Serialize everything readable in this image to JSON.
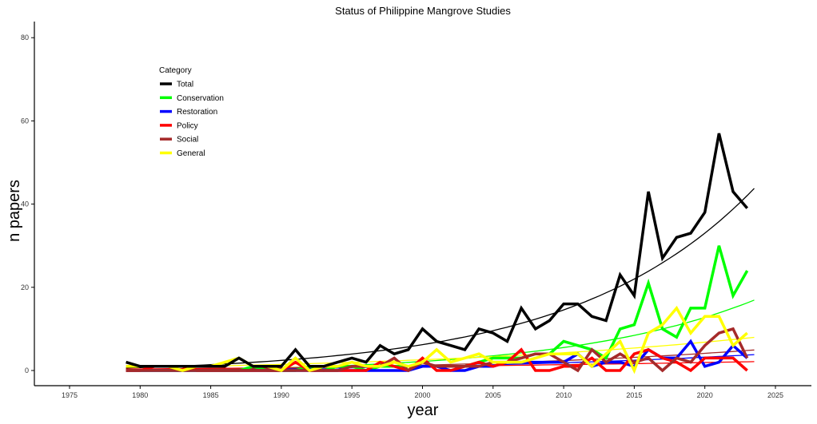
{
  "chart_data": {
    "type": "line",
    "title": "Status of Philippine Mangrove Studies",
    "xlabel": "year",
    "ylabel": "n papers",
    "xlim": [
      1972,
      2028
    ],
    "ylim": [
      -4,
      84
    ],
    "xticks": [
      1975,
      1980,
      1985,
      1990,
      1995,
      2000,
      2005,
      2010,
      2015,
      2020,
      2025
    ],
    "yticks": [
      0,
      20,
      40,
      60,
      80
    ],
    "grid": false,
    "legend": {
      "title": "Category",
      "placement": "top-left"
    },
    "x_start": 1979,
    "series": [
      {
        "name": "Total",
        "color": "#000000",
        "values": [
          2,
          1,
          1,
          1,
          1,
          1,
          1,
          1,
          3,
          1,
          1,
          1,
          5,
          1,
          1,
          2,
          3,
          2,
          6,
          4,
          5,
          10,
          7,
          6,
          5,
          10,
          9,
          7,
          15,
          10,
          12,
          16,
          16,
          13,
          12,
          23,
          18,
          43,
          27,
          32,
          33,
          38,
          57,
          43,
          39
        ]
      },
      {
        "name": "Conservation",
        "color": "#00ff00",
        "values": [
          0,
          0,
          0,
          0,
          0,
          0,
          0,
          0,
          0,
          1,
          0,
          0,
          0,
          1,
          0,
          1,
          1,
          0,
          1,
          1,
          1,
          1,
          1,
          1,
          1,
          2,
          3,
          3,
          3,
          4,
          4,
          7,
          6,
          5,
          3,
          10,
          11,
          21,
          10,
          8,
          15,
          15,
          30,
          18,
          24
        ]
      },
      {
        "name": "Restoration",
        "color": "#0000ff",
        "values": [
          0,
          0,
          0,
          0,
          0,
          0,
          0,
          0,
          0,
          0,
          0,
          0,
          0,
          0,
          0,
          0,
          0,
          0,
          0,
          0,
          0,
          1,
          1,
          0,
          0,
          1,
          1,
          2,
          2,
          2,
          2,
          2,
          4,
          1,
          2,
          2,
          1,
          5,
          3,
          3,
          7,
          1,
          2,
          6,
          3
        ]
      },
      {
        "name": "Policy",
        "color": "#ff0000",
        "values": [
          0,
          0,
          1,
          1,
          1,
          0,
          0,
          0,
          0,
          0,
          0,
          0,
          2,
          0,
          0,
          0,
          0,
          0,
          2,
          1,
          0,
          3,
          0,
          0,
          1,
          2,
          1,
          2,
          5,
          0,
          0,
          1,
          1,
          3,
          0,
          0,
          4,
          5,
          3,
          2,
          0,
          3,
          3,
          3,
          0
        ]
      },
      {
        "name": "Social",
        "color": "#a52a2a",
        "values": [
          0,
          0,
          0,
          0,
          0,
          0,
          0,
          0,
          0,
          0,
          0,
          0,
          0,
          0,
          0,
          0,
          1,
          1,
          1,
          3,
          0,
          2,
          1,
          1,
          1,
          1,
          2,
          2,
          3,
          4,
          4,
          2,
          0,
          5,
          2,
          4,
          2,
          3,
          0,
          3,
          2,
          6,
          9,
          10,
          3
        ]
      },
      {
        "name": "General",
        "color": "#ffff00",
        "values": [
          1,
          1,
          1,
          1,
          0,
          1,
          1,
          2,
          3,
          1,
          1,
          0,
          3,
          0,
          1,
          1,
          2,
          1,
          1,
          2,
          1,
          2,
          5,
          2,
          3,
          4,
          2,
          2,
          2,
          3,
          4,
          4,
          4,
          1,
          4,
          7,
          0,
          9,
          11,
          15,
          9,
          13,
          13,
          6,
          9
        ]
      }
    ]
  }
}
